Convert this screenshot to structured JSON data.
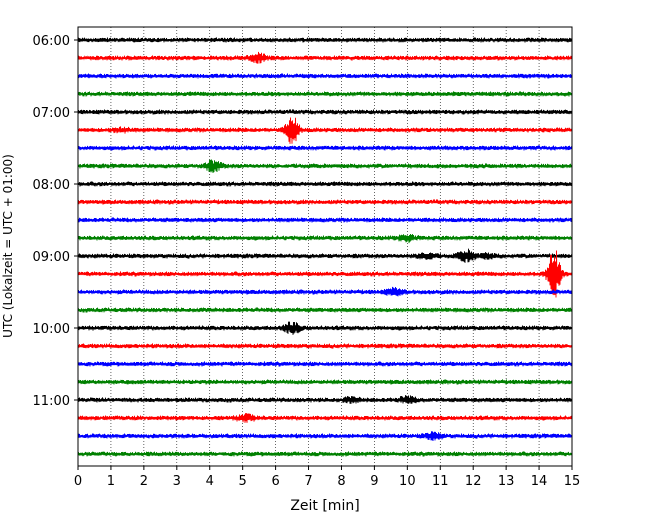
{
  "chart_data": {
    "type": "line",
    "title": "",
    "xlabel": "Zeit  [min]",
    "ylabel": "UTC (Lokalzeit = UTC + 01:00)",
    "xlim": [
      0,
      15
    ],
    "x_ticks": [
      0,
      1,
      2,
      3,
      4,
      5,
      6,
      7,
      8,
      9,
      10,
      11,
      12,
      13,
      14,
      15
    ],
    "y_tick_labels": [
      "06:00",
      "07:00",
      "08:00",
      "09:00",
      "10:00",
      "11:00"
    ],
    "grid": "vertical dotted",
    "trace_colors": [
      "#000000",
      "#ff0000",
      "#0000ff",
      "#008000"
    ],
    "row_interval_min": 15,
    "traces": [
      {
        "start": "06:00",
        "color": "#000000",
        "bursts": []
      },
      {
        "start": "06:15",
        "color": "#ff0000",
        "bursts": [
          {
            "x": 5.45,
            "amp": 4
          }
        ]
      },
      {
        "start": "06:30",
        "color": "#0000ff",
        "bursts": []
      },
      {
        "start": "06:45",
        "color": "#008000",
        "bursts": []
      },
      {
        "start": "07:00",
        "color": "#000000",
        "bursts": []
      },
      {
        "start": "07:15",
        "color": "#ff0000",
        "bursts": [
          {
            "x": 6.5,
            "amp": 14
          },
          {
            "x": 1.3,
            "amp": 2
          }
        ]
      },
      {
        "start": "07:30",
        "color": "#0000ff",
        "bursts": []
      },
      {
        "start": "07:45",
        "color": "#008000",
        "bursts": [
          {
            "x": 4.1,
            "amp": 5
          }
        ]
      },
      {
        "start": "08:00",
        "color": "#000000",
        "bursts": []
      },
      {
        "start": "08:15",
        "color": "#ff0000",
        "bursts": []
      },
      {
        "start": "08:30",
        "color": "#0000ff",
        "bursts": []
      },
      {
        "start": "08:45",
        "color": "#008000",
        "bursts": [
          {
            "x": 10.0,
            "amp": 3
          }
        ]
      },
      {
        "start": "09:00",
        "color": "#000000",
        "bursts": [
          {
            "x": 10.6,
            "amp": 3
          },
          {
            "x": 11.8,
            "amp": 5
          },
          {
            "x": 12.4,
            "amp": 2
          }
        ]
      },
      {
        "start": "09:15",
        "color": "#ff0000",
        "bursts": [
          {
            "x": 14.45,
            "amp": 26
          }
        ]
      },
      {
        "start": "09:30",
        "color": "#0000ff",
        "bursts": [
          {
            "x": 9.6,
            "amp": 3
          }
        ]
      },
      {
        "start": "09:45",
        "color": "#008000",
        "bursts": []
      },
      {
        "start": "10:00",
        "color": "#000000",
        "bursts": [
          {
            "x": 6.5,
            "amp": 5
          }
        ]
      },
      {
        "start": "10:15",
        "color": "#ff0000",
        "bursts": []
      },
      {
        "start": "10:30",
        "color": "#0000ff",
        "bursts": []
      },
      {
        "start": "10:45",
        "color": "#008000",
        "bursts": []
      },
      {
        "start": "11:00",
        "color": "#000000",
        "bursts": [
          {
            "x": 8.3,
            "amp": 2
          },
          {
            "x": 10.0,
            "amp": 3
          }
        ]
      },
      {
        "start": "11:15",
        "color": "#ff0000",
        "bursts": [
          {
            "x": 5.1,
            "amp": 3
          }
        ]
      },
      {
        "start": "11:30",
        "color": "#0000ff",
        "bursts": [
          {
            "x": 10.8,
            "amp": 3
          }
        ]
      },
      {
        "start": "11:45",
        "color": "#008000",
        "bursts": []
      }
    ]
  }
}
